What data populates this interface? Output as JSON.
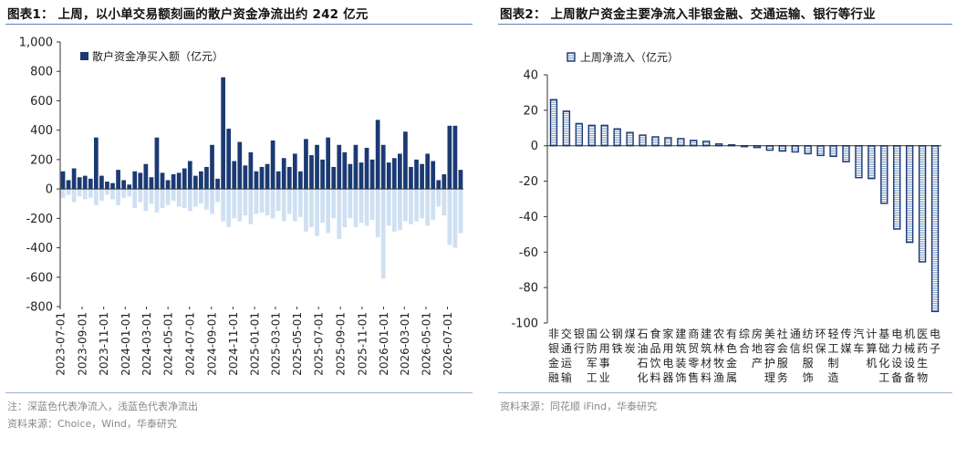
{
  "left": {
    "title": "图表1：  上周，以小单交易额刻画的散户资金净流出约 242 亿元",
    "note": "注：深蓝色代表净流入，浅蓝色代表净流出",
    "source": "资料来源：Choice，Wind，华泰研究",
    "chart_data": {
      "type": "bar",
      "legend": "散户资金净买入额（亿元）",
      "ylim": [
        -800,
        1000
      ],
      "yticks": [
        "1,000",
        "800",
        "600",
        "400",
        "200",
        "0",
        "-200",
        "-400",
        "-600",
        "-800"
      ],
      "xticks": [
        "2023-07-01",
        "2023-09-01",
        "2023-11-01",
        "2024-01-01",
        "2024-03-01",
        "2024-05-01",
        "2024-07-01",
        "2024-09-01",
        "2024-11-01",
        "2025-01-01",
        "2025-03-01",
        "2025-05-01",
        "2025-07-01",
        "2025-09-01",
        "2025-11-01",
        "2026-01-01",
        "2026-03-01",
        "2026-05-01",
        "2026-07-01"
      ],
      "inflow_color": "#1b3a73",
      "outflow_color": "#cfe0f2",
      "legend_position": "top-left",
      "period_start": "2023-07-01",
      "period_end": "2026-08-15",
      "weeks": [
        {
          "inflow": 120,
          "outflow": -60
        },
        {
          "inflow": 60,
          "outflow": -40
        },
        {
          "inflow": 140,
          "outflow": -90
        },
        {
          "inflow": 80,
          "outflow": -50
        },
        {
          "inflow": 90,
          "outflow": -70
        },
        {
          "inflow": 70,
          "outflow": -60
        },
        {
          "inflow": 350,
          "outflow": -110
        },
        {
          "inflow": 90,
          "outflow": -80
        },
        {
          "inflow": 50,
          "outflow": -40
        },
        {
          "inflow": 40,
          "outflow": -70
        },
        {
          "inflow": 130,
          "outflow": -110
        },
        {
          "inflow": 60,
          "outflow": -60
        },
        {
          "inflow": 30,
          "outflow": -50
        },
        {
          "inflow": 120,
          "outflow": -130
        },
        {
          "inflow": 110,
          "outflow": -90
        },
        {
          "inflow": 170,
          "outflow": -150
        },
        {
          "inflow": 80,
          "outflow": -100
        },
        {
          "inflow": 350,
          "outflow": -160
        },
        {
          "inflow": 110,
          "outflow": -130
        },
        {
          "inflow": 60,
          "outflow": -110
        },
        {
          "inflow": 100,
          "outflow": -80
        },
        {
          "inflow": 110,
          "outflow": -120
        },
        {
          "inflow": 140,
          "outflow": -130
        },
        {
          "inflow": 190,
          "outflow": -150
        },
        {
          "inflow": 90,
          "outflow": -120
        },
        {
          "inflow": 120,
          "outflow": -100
        },
        {
          "inflow": 150,
          "outflow": -140
        },
        {
          "inflow": 300,
          "outflow": -170
        },
        {
          "inflow": 70,
          "outflow": -90
        },
        {
          "inflow": 760,
          "outflow": -220
        },
        {
          "inflow": 410,
          "outflow": -260
        },
        {
          "inflow": 190,
          "outflow": -200
        },
        {
          "inflow": 320,
          "outflow": -220
        },
        {
          "inflow": 160,
          "outflow": -180
        },
        {
          "inflow": 250,
          "outflow": -240
        },
        {
          "inflow": 120,
          "outflow": -170
        },
        {
          "inflow": 150,
          "outflow": -160
        },
        {
          "inflow": 170,
          "outflow": -180
        },
        {
          "inflow": 330,
          "outflow": -200
        },
        {
          "inflow": 120,
          "outflow": -150
        },
        {
          "inflow": 210,
          "outflow": -220
        },
        {
          "inflow": 150,
          "outflow": -170
        },
        {
          "inflow": 240,
          "outflow": -220
        },
        {
          "inflow": 120,
          "outflow": -190
        },
        {
          "inflow": 340,
          "outflow": -290
        },
        {
          "inflow": 230,
          "outflow": -260
        },
        {
          "inflow": 300,
          "outflow": -320
        },
        {
          "inflow": 200,
          "outflow": -230
        },
        {
          "inflow": 350,
          "outflow": -300
        },
        {
          "inflow": 150,
          "outflow": -200
        },
        {
          "inflow": 300,
          "outflow": -340
        },
        {
          "inflow": 250,
          "outflow": -260
        },
        {
          "inflow": 170,
          "outflow": -200
        },
        {
          "inflow": 300,
          "outflow": -260
        },
        {
          "inflow": 180,
          "outflow": -230
        },
        {
          "inflow": 280,
          "outflow": -250
        },
        {
          "inflow": 200,
          "outflow": -210
        },
        {
          "inflow": 470,
          "outflow": -330
        },
        {
          "inflow": 300,
          "outflow": -610
        },
        {
          "inflow": 180,
          "outflow": -250
        },
        {
          "inflow": 210,
          "outflow": -290
        },
        {
          "inflow": 240,
          "outflow": -280
        },
        {
          "inflow": 390,
          "outflow": -220
        },
        {
          "inflow": 150,
          "outflow": -240
        },
        {
          "inflow": 200,
          "outflow": -220
        },
        {
          "inflow": 170,
          "outflow": -200
        },
        {
          "inflow": 240,
          "outflow": -250
        },
        {
          "inflow": 190,
          "outflow": -210
        },
        {
          "inflow": 60,
          "outflow": -120
        },
        {
          "inflow": 100,
          "outflow": -180
        },
        {
          "inflow": 430,
          "outflow": -380
        },
        {
          "inflow": 430,
          "outflow": -400
        },
        {
          "inflow": 130,
          "outflow": -300
        }
      ]
    }
  },
  "right": {
    "title": "图表2：  上周散户资金主要净流入非银金融、交通运输、银行等行业",
    "source": "资料来源：同花顺 iFind，华泰研究",
    "chart_data": {
      "type": "bar",
      "legend": "上周净流入（亿元）",
      "ylim": [
        -100,
        40
      ],
      "yticks": [
        "40",
        "20",
        "0",
        "-20",
        "-40",
        "-60",
        "-80",
        "-100"
      ],
      "bar_color": "#1b3a73",
      "legend_position": "top-left",
      "categories": [
        "非银金融",
        "交通运输",
        "银行",
        "国防军工",
        "公用事业",
        "钢铁",
        "煤炭",
        "石油石化",
        "食品饮料",
        "家用电器",
        "建筑装饰",
        "商贸零售",
        "建筑材料",
        "农林牧渔",
        "有色金属",
        "综合",
        "房地产",
        "美容护理",
        "社会服务",
        "通信",
        "纺织服饰",
        "环保",
        "轻工制造",
        "传媒",
        "汽车",
        "计算机",
        "基础化工",
        "电力设备",
        "机械设备",
        "医药生物",
        "电子"
      ],
      "values": [
        26,
        19.5,
        12.5,
        11.5,
        11.5,
        9.5,
        7.5,
        6,
        5,
        4.5,
        4,
        3,
        2.5,
        1,
        0.5,
        -0.5,
        -1,
        -2.5,
        -3,
        -3.5,
        -4.5,
        -5.5,
        -6,
        -9,
        -18,
        -18.5,
        -32.5,
        -47,
        -54.5,
        -65.5,
        -93.5
      ]
    }
  }
}
